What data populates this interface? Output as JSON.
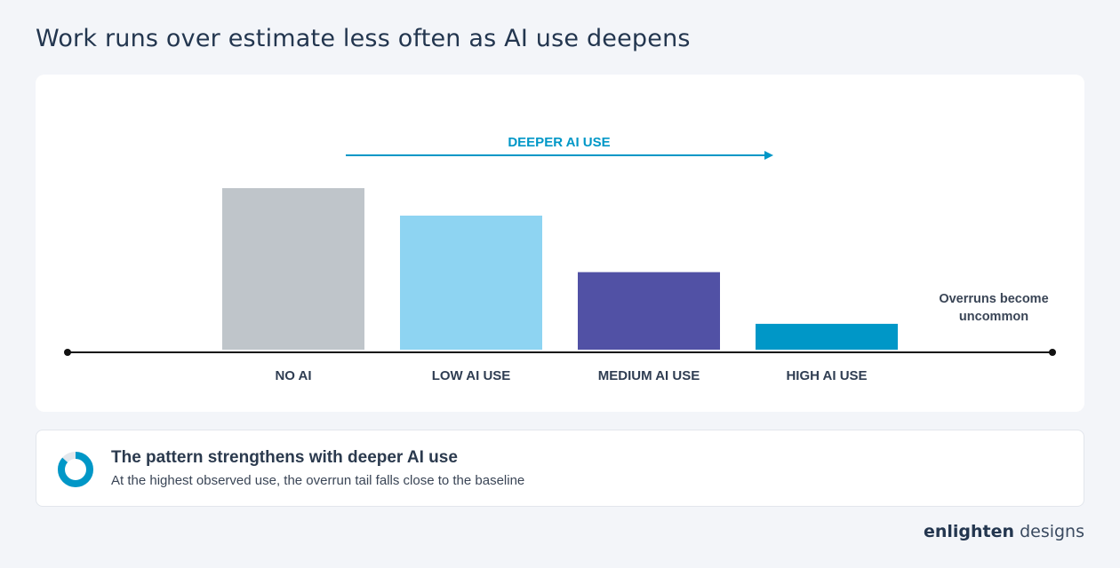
{
  "title": "Work runs over estimate less often as AI use deepens",
  "chart_data": {
    "type": "bar",
    "categories": [
      "NO AI",
      "LOW AI USE",
      "MEDIUM AI USE",
      "HIGH AI USE"
    ],
    "values": [
      100,
      83,
      48,
      16
    ],
    "ylim": [
      0,
      100
    ],
    "colors": [
      "#bfc5ca",
      "#8ed4f2",
      "#5151a5",
      "#0097c7"
    ],
    "arrow_label": "DEEPER AI USE",
    "end_annotation": [
      "Overruns become",
      "uncommon"
    ],
    "axis_color": "#111111",
    "arrow_color": "#0097c7"
  },
  "note": {
    "heading": "The pattern strengthens with deeper AI use",
    "text": "At the highest observed use, the overrun tail falls close to the baseline"
  },
  "brand": {
    "part1": "enlighten",
    "part2": "designs"
  }
}
